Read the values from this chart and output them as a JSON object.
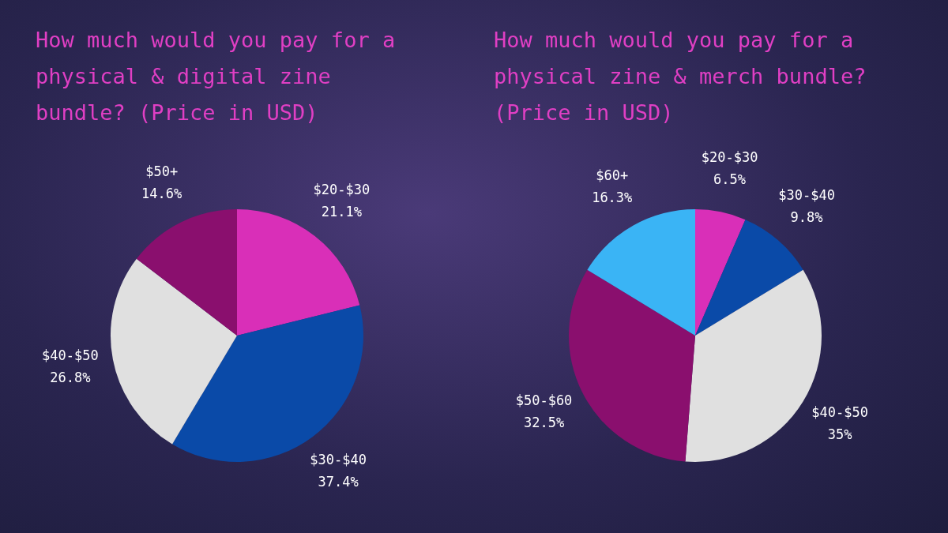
{
  "chart_data": [
    {
      "type": "pie",
      "title": "How much would you pay for a physical & digital zine bundle? (Price in USD)",
      "categories": [
        "$20-$30",
        "$30-$40",
        "$40-$50",
        "$50+"
      ],
      "values": [
        21.1,
        37.4,
        26.8,
        14.6
      ],
      "value_labels": [
        "21.1%",
        "37.4%",
        "26.8%",
        "14.6%"
      ],
      "colors": [
        "#d92fb8",
        "#0a4aa8",
        "#e0e0e0",
        "#8a0f6e"
      ]
    },
    {
      "type": "pie",
      "title": "How much would you pay for a physical zine & merch bundle? (Price in USD)",
      "categories": [
        "$20-$30",
        "$30-$40",
        "$40-$50",
        "$50-$60",
        "$60+"
      ],
      "values": [
        6.5,
        9.8,
        35,
        32.5,
        16.3
      ],
      "value_labels": [
        "6.5%",
        "9.8%",
        "35%",
        "32.5%",
        "16.3%"
      ],
      "colors": [
        "#d92fb8",
        "#0a4aa8",
        "#e0e0e0",
        "#8a0f6e",
        "#3ab4f5"
      ]
    }
  ]
}
